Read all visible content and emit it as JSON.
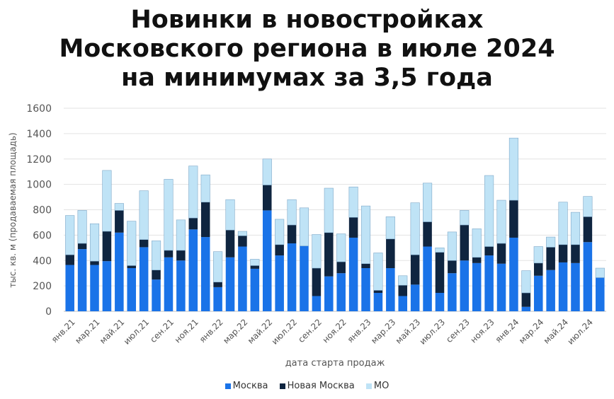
{
  "chart_data": {
    "type": "bar",
    "stacked": true,
    "title": [
      "Новинки в новостройках",
      "Московского региона в июле 2024",
      "на минимумах за 3,5 года"
    ],
    "xlabel": "дата старта продаж",
    "ylabel": "тыс. кв. м (продаваемая площадь)",
    "ylim": [
      0,
      1600
    ],
    "yticks": [
      0,
      200,
      400,
      600,
      800,
      1000,
      1200,
      1400,
      1600
    ],
    "grid": true,
    "legend_position": "bottom",
    "x_tick_labels": [
      {
        "index": 0,
        "label": "янв.21"
      },
      {
        "index": 2,
        "label": "мар.21"
      },
      {
        "index": 4,
        "label": "май.21"
      },
      {
        "index": 6,
        "label": "июл.21"
      },
      {
        "index": 8,
        "label": "сен.21"
      },
      {
        "index": 10,
        "label": "ноя.21"
      },
      {
        "index": 12,
        "label": "янв.22"
      },
      {
        "index": 14,
        "label": "мар.22"
      },
      {
        "index": 16,
        "label": "май.22"
      },
      {
        "index": 18,
        "label": "июл.22"
      },
      {
        "index": 20,
        "label": "сен.22"
      },
      {
        "index": 22,
        "label": "ноя.22"
      },
      {
        "index": 24,
        "label": "янв.23"
      },
      {
        "index": 26,
        "label": "мар.23"
      },
      {
        "index": 28,
        "label": "май.23"
      },
      {
        "index": 30,
        "label": "июл.23"
      },
      {
        "index": 32,
        "label": "сен.23"
      },
      {
        "index": 34,
        "label": "ноя.23"
      },
      {
        "index": 36,
        "label": "янв.24"
      },
      {
        "index": 38,
        "label": "мар.24"
      },
      {
        "index": 40,
        "label": "май.24"
      },
      {
        "index": 42,
        "label": "июл.24"
      }
    ],
    "series": [
      {
        "name": "Москва",
        "color": "#1a73e8",
        "values": [
          365,
          490,
          365,
          395,
          620,
          340,
          505,
          250,
          425,
          400,
          645,
          585,
          190,
          425,
          510,
          335,
          795,
          440,
          535,
          515,
          120,
          275,
          300,
          580,
          340,
          145,
          340,
          120,
          210,
          510,
          145,
          300,
          400,
          380,
          440,
          375,
          580,
          35,
          280,
          325,
          385,
          380,
          545,
          265
        ]
      },
      {
        "name": "Новая Москва",
        "color": "#0f2540",
        "values": [
          80,
          45,
          30,
          235,
          175,
          20,
          60,
          75,
          55,
          80,
          90,
          275,
          40,
          215,
          85,
          25,
          200,
          85,
          145,
          0,
          220,
          345,
          90,
          160,
          35,
          20,
          230,
          85,
          235,
          195,
          320,
          100,
          280,
          45,
          70,
          160,
          295,
          110,
          100,
          180,
          140,
          145,
          200,
          0
        ]
      },
      {
        "name": "МО",
        "color": "#bfe3f6",
        "values": [
          310,
          260,
          295,
          480,
          55,
          350,
          385,
          230,
          560,
          240,
          410,
          215,
          240,
          240,
          35,
          50,
          205,
          200,
          200,
          300,
          265,
          350,
          220,
          240,
          455,
          295,
          175,
          75,
          410,
          305,
          35,
          225,
          115,
          225,
          560,
          340,
          490,
          175,
          130,
          80,
          335,
          255,
          160,
          75
        ]
      }
    ]
  }
}
